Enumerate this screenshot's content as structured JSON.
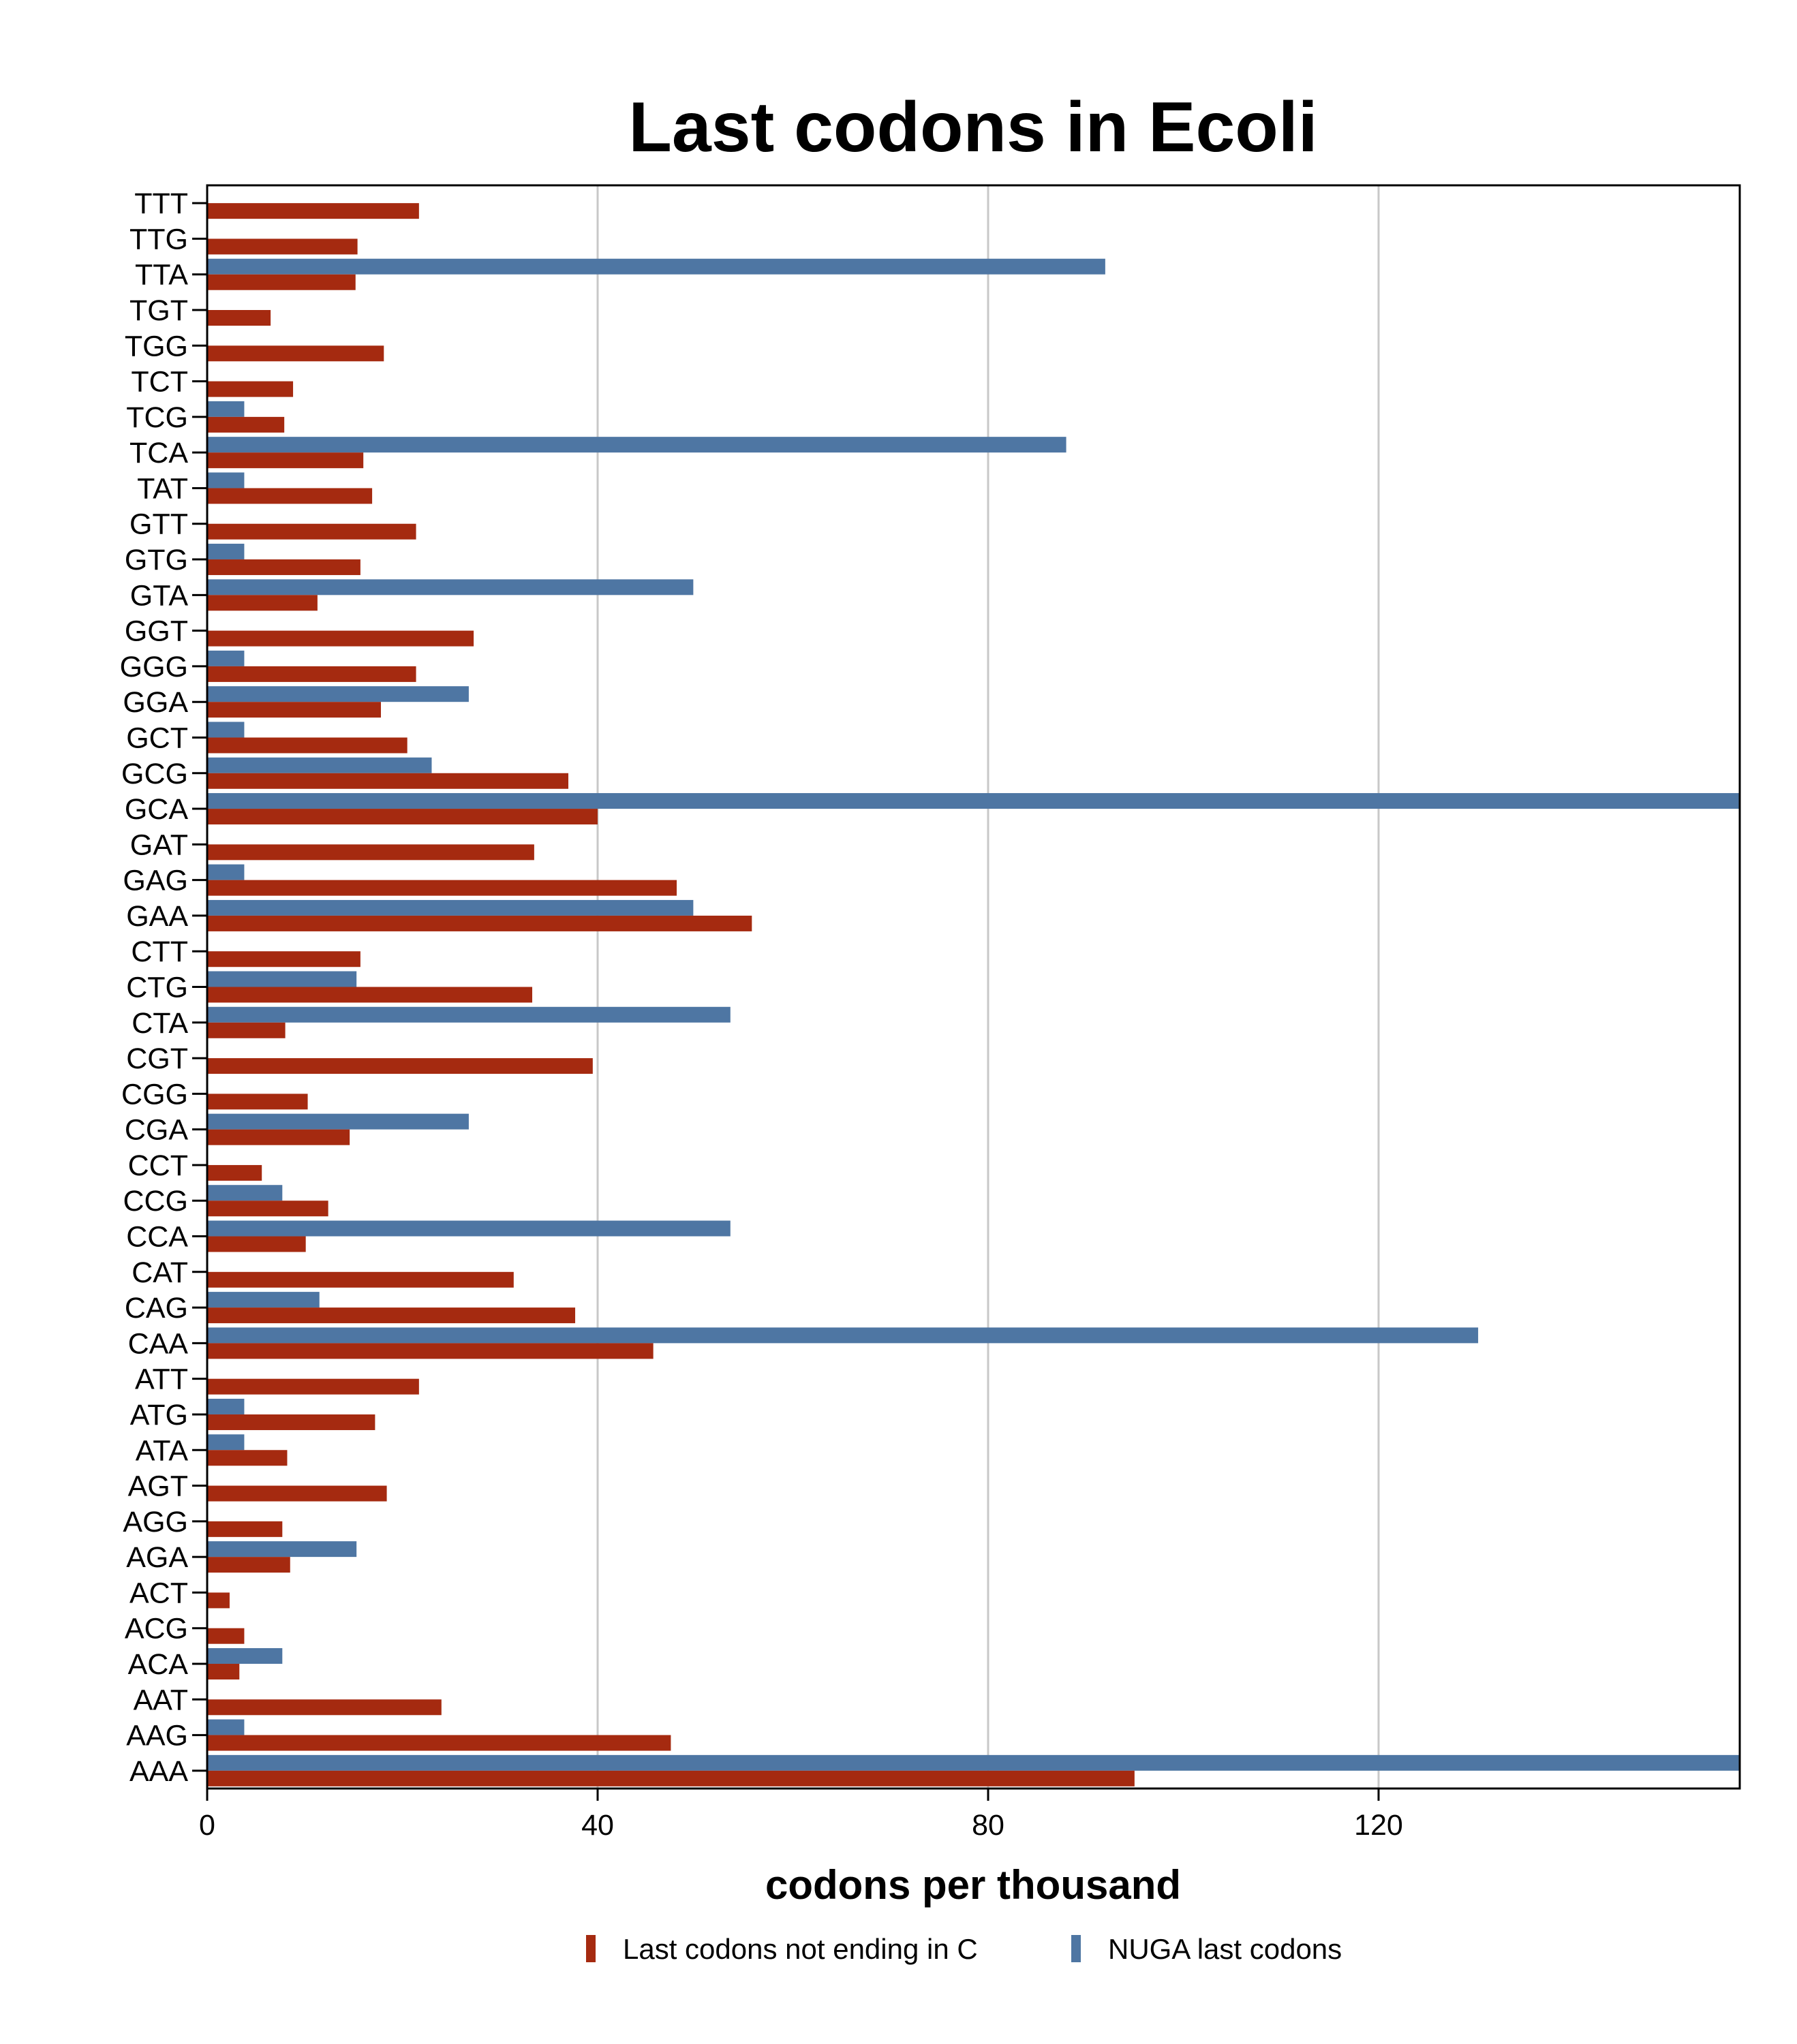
{
  "chart_data": {
    "type": "bar",
    "orientation": "horizontal",
    "title": "Last codons in Ecoli",
    "xlabel": "codons per thousand",
    "ylabel": "",
    "xlim": [
      0,
      157
    ],
    "xticks": [
      0,
      40,
      80,
      120
    ],
    "grid": "vertical",
    "legend": "bottom",
    "colors": {
      "red": "#a52a10",
      "blue": "#4e76a3"
    },
    "categories": [
      "TTT",
      "TTG",
      "TTA",
      "TGT",
      "TGG",
      "TCT",
      "TCG",
      "TCA",
      "TAT",
      "GTT",
      "GTG",
      "GTA",
      "GGT",
      "GGG",
      "GGA",
      "GCT",
      "GCG",
      "GCA",
      "GAT",
      "GAG",
      "GAA",
      "CTT",
      "CTG",
      "CTA",
      "CGT",
      "CGG",
      "CGA",
      "CCT",
      "CCG",
      "CCA",
      "CAT",
      "CAG",
      "CAA",
      "ATT",
      "ATG",
      "ATA",
      "AGT",
      "AGG",
      "AGA",
      "ACT",
      "ACG",
      "ACA",
      "AAT",
      "AAG",
      "AAA"
    ],
    "series": [
      {
        "name": "Last codons not ending in C",
        "color": "#a52a10",
        "values": [
          21.7,
          15.4,
          15.2,
          6.5,
          18.1,
          8.8,
          7.9,
          16.0,
          16.9,
          21.4,
          15.7,
          11.3,
          27.3,
          21.4,
          17.8,
          20.5,
          37.0,
          40.0,
          33.5,
          48.1,
          55.8,
          15.7,
          33.3,
          8.0,
          39.5,
          10.3,
          14.6,
          5.6,
          12.4,
          10.1,
          31.4,
          37.7,
          45.7,
          21.7,
          17.2,
          8.2,
          18.4,
          7.7,
          8.5,
          2.3,
          3.8,
          3.3,
          24.0,
          47.5,
          95.0
        ]
      },
      {
        "name": "NUGA last codons",
        "color": "#4e76a3",
        "values": [
          0,
          0,
          92.0,
          0,
          0,
          0,
          3.8,
          88.0,
          3.8,
          0,
          3.8,
          49.8,
          0,
          3.8,
          26.8,
          3.8,
          23.0,
          157,
          0,
          3.8,
          49.8,
          0,
          15.3,
          53.6,
          0,
          0,
          26.8,
          0,
          7.7,
          53.6,
          0,
          11.5,
          130.2,
          0,
          3.8,
          3.8,
          0,
          0,
          15.3,
          0,
          0,
          7.7,
          0,
          3.8,
          157
        ]
      }
    ]
  }
}
